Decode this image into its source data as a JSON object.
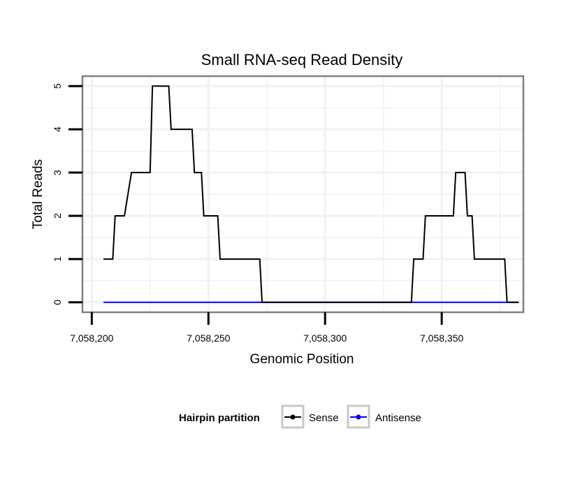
{
  "chart_data": {
    "type": "line",
    "title": "Small RNA-seq Read Density",
    "xlabel": "Genomic Position",
    "ylabel": "Total Reads",
    "xlim": [
      7058196,
      7058385
    ],
    "ylim": [
      -0.23,
      5.23
    ],
    "x_ticks": [
      7058200,
      7058250,
      7058300,
      7058350
    ],
    "x_tick_labels": [
      "7,058,200",
      "7,058,250",
      "7,058,300",
      "7,058,350"
    ],
    "y_ticks": [
      0,
      1,
      2,
      3,
      4,
      5
    ],
    "y_tick_labels": [
      "0",
      "1",
      "2",
      "3",
      "4",
      "5"
    ],
    "grid": true,
    "legend": {
      "title": "Hairpin partition",
      "position": "bottom",
      "entries": [
        {
          "name": "Sense",
          "color": "#000000"
        },
        {
          "name": "Antisense",
          "color": "#0000ff"
        }
      ]
    },
    "series": [
      {
        "name": "Sense",
        "color": "#000000",
        "x": [
          7058205,
          7058209,
          7058210,
          7058214,
          7058217,
          7058225,
          7058226,
          7058233,
          7058234,
          7058243,
          7058244,
          7058247,
          7058248,
          7058254,
          7058255,
          7058272,
          7058273,
          7058337,
          7058338,
          7058342,
          7058343,
          7058355,
          7058356,
          7058360,
          7058361,
          7058363,
          7058364,
          7058377,
          7058378,
          7058383
        ],
        "values": [
          1,
          1,
          2,
          2,
          3,
          3,
          5,
          5,
          4,
          4,
          3,
          3,
          2,
          2,
          1,
          1,
          0,
          0,
          1,
          1,
          2,
          2,
          3,
          3,
          2,
          2,
          1,
          1,
          0,
          0
        ]
      },
      {
        "name": "Antisense",
        "color": "#0000ff",
        "x": [
          7058205,
          7058383
        ],
        "values": [
          0,
          0
        ]
      }
    ]
  }
}
